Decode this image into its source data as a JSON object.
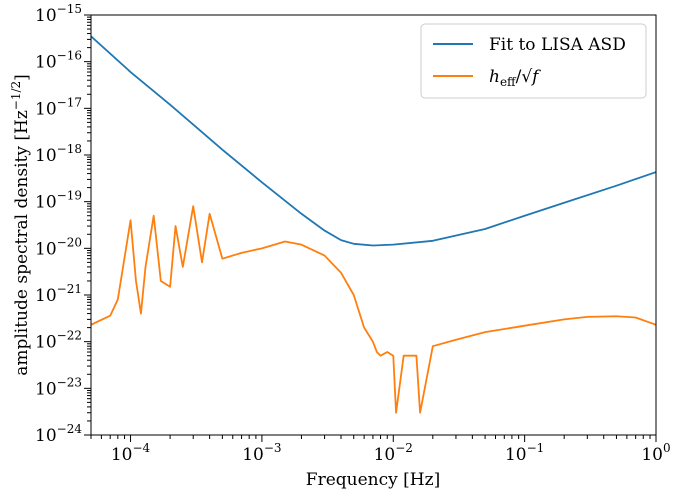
{
  "chart_data": {
    "type": "line",
    "title": "",
    "xlabel": "Frequency [Hz]",
    "ylabel": "amplitude spectral density [Hz^-1/2]",
    "ylabel_main": "amplitude spectral density [Hz",
    "ylabel_exp": "−1/2",
    "ylabel_close": "]",
    "xscale": "log",
    "yscale": "log",
    "xlim": [
      5e-05,
      1
    ],
    "ylim": [
      1e-24,
      1e-15
    ],
    "legend_position": "top-right",
    "grid": false,
    "x_ticks": [
      {
        "value": 0.0001,
        "base": "10",
        "exp": "−4"
      },
      {
        "value": 0.001,
        "base": "10",
        "exp": "−3"
      },
      {
        "value": 0.01,
        "base": "10",
        "exp": "−2"
      },
      {
        "value": 0.1,
        "base": "10",
        "exp": "−1"
      },
      {
        "value": 1,
        "base": "10",
        "exp": "0"
      }
    ],
    "y_ticks": [
      {
        "value": 1e-24,
        "base": "10",
        "exp": "−24"
      },
      {
        "value": 1e-23,
        "base": "10",
        "exp": "−23"
      },
      {
        "value": 1e-22,
        "base": "10",
        "exp": "−22"
      },
      {
        "value": 1e-21,
        "base": "10",
        "exp": "−21"
      },
      {
        "value": 1e-20,
        "base": "10",
        "exp": "−20"
      },
      {
        "value": 1e-19,
        "base": "10",
        "exp": "−19"
      },
      {
        "value": 1e-18,
        "base": "10",
        "exp": "−18"
      },
      {
        "value": 1e-17,
        "base": "10",
        "exp": "−17"
      },
      {
        "value": 1e-16,
        "base": "10",
        "exp": "−16"
      },
      {
        "value": 1e-15,
        "base": "10",
        "exp": "−15"
      }
    ],
    "series": [
      {
        "name": "Fit to LISA ASD",
        "label_parts": [
          "Fit to LISA ASD"
        ],
        "color": "#1f77b4",
        "x": [
          5e-05,
          0.0001,
          0.0002,
          0.0005,
          0.001,
          0.002,
          0.003,
          0.004,
          0.005,
          0.007,
          0.01,
          0.02,
          0.05,
          0.1,
          0.2,
          0.5,
          1
        ],
        "y": [
          3.5e-16,
          6e-17,
          1.2e-17,
          1.3e-18,
          2.6e-19,
          5.5e-20,
          2.4e-20,
          1.5e-20,
          1.25e-20,
          1.15e-20,
          1.2e-20,
          1.45e-20,
          2.6e-20,
          5e-20,
          9.5e-20,
          2.2e-19,
          4.3e-19
        ]
      },
      {
        "name": "h_eff/√f",
        "label_parts": [
          "h",
          "eff",
          "/√",
          "f"
        ],
        "color": "#ff7f0e",
        "x": [
          5e-05,
          7e-05,
          8e-05,
          0.0001,
          0.00011,
          0.00012,
          0.00013,
          0.00015,
          0.00017,
          0.0002,
          0.00022,
          0.00025,
          0.0003,
          0.00035,
          0.0004,
          0.0005,
          0.0007,
          0.001,
          0.0015,
          0.002,
          0.003,
          0.004,
          0.005,
          0.006,
          0.007,
          0.0075,
          0.008,
          0.009,
          0.01,
          0.0105,
          0.012,
          0.015,
          0.016,
          0.02,
          0.03,
          0.05,
          0.1,
          0.2,
          0.3,
          0.5,
          0.7,
          1
        ],
        "y": [
          2.3e-22,
          3.6e-22,
          8e-22,
          4e-20,
          2e-21,
          4e-22,
          4e-21,
          5e-20,
          2e-21,
          1.5e-21,
          3e-20,
          4e-21,
          8e-20,
          5e-21,
          5.5e-20,
          6e-21,
          8e-21,
          1e-20,
          1.4e-20,
          1.2e-20,
          7e-21,
          3e-21,
          1e-21,
          2e-22,
          1e-22,
          6e-23,
          5e-23,
          6e-23,
          5e-23,
          3e-24,
          5e-23,
          5e-23,
          3e-24,
          8e-23,
          1.1e-22,
          1.6e-22,
          2.2e-22,
          3e-22,
          3.4e-22,
          3.5e-22,
          3.3e-22,
          2.3e-22
        ]
      }
    ]
  }
}
